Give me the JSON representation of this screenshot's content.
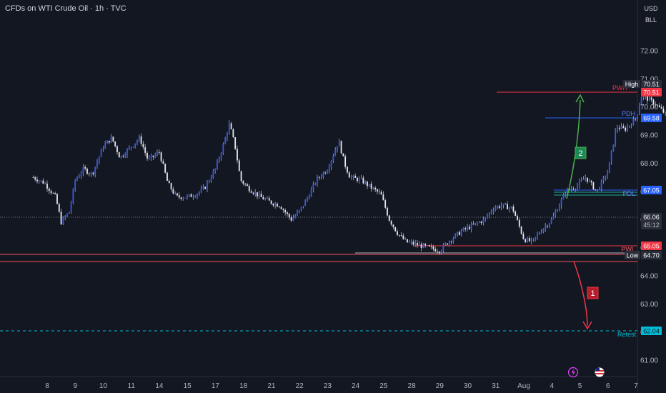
{
  "header": {
    "title": "CFDs on WTI Crude Oil · 1h · TVC",
    "currency": "USD",
    "unit": "BLL"
  },
  "price_axis": {
    "ticks": [
      "72.00",
      "71.00",
      "70.00",
      "69.00",
      "68.00",
      "67.00",
      "66.00",
      "65.00",
      "64.00",
      "63.00",
      "62.00",
      "61.00"
    ]
  },
  "time_axis": {
    "ticks": [
      "8",
      "9",
      "10",
      "11",
      "14",
      "15",
      "17",
      "18",
      "21",
      "22",
      "23",
      "24",
      "25",
      "28",
      "29",
      "30",
      "31",
      "Aug",
      "4",
      "5",
      "6",
      "7"
    ]
  },
  "levels": {
    "high": {
      "label": "High",
      "price": "70.51",
      "color": "#2a2e39"
    },
    "pwh": {
      "label": "PWH",
      "price": "70.51",
      "color": "#f23645"
    },
    "pdh": {
      "label": "PDH",
      "price": "69.58",
      "color": "#2962ff"
    },
    "pdl": {
      "label": "PDL",
      "price": "67.05",
      "color": "#2962ff"
    },
    "current": {
      "price": "66.06",
      "countdown": "45:12",
      "color": "#b2b5be"
    },
    "pwl": {
      "label": "PWL",
      "price": "65.05",
      "color": "#f23645"
    },
    "low": {
      "label": "Low",
      "price": "64.70",
      "color": "#2a2e39"
    },
    "retest": {
      "label": "Retest",
      "price": "62.04",
      "color": "#00bcd4"
    }
  },
  "annotations": {
    "scenario_1": {
      "label": "1",
      "color": "#b71c2a"
    },
    "scenario_2": {
      "label": "2",
      "color": "#1b8a52"
    }
  },
  "chart_data": {
    "type": "candlestick",
    "title": "CFDs on WTI Crude Oil · 1h · TVC",
    "x_categories": [
      "8",
      "9",
      "10",
      "11",
      "14",
      "15",
      "17",
      "18",
      "21",
      "22",
      "23",
      "24",
      "25",
      "28",
      "29",
      "30",
      "31",
      "Aug",
      "4",
      "5",
      "6",
      "7"
    ],
    "ylim": [
      60.5,
      73.0
    ],
    "grid": false,
    "close_path": [
      [
        -0.5,
        67.5
      ],
      [
        -0.1,
        67.3
      ],
      [
        0.3,
        66.8
      ],
      [
        0.5,
        65.9
      ],
      [
        0.8,
        66.3
      ],
      [
        1.0,
        67.4
      ],
      [
        1.3,
        67.8
      ],
      [
        1.6,
        67.6
      ],
      [
        2.0,
        68.6
      ],
      [
        2.3,
        68.9
      ],
      [
        2.6,
        68.2
      ],
      [
        3.0,
        68.6
      ],
      [
        3.3,
        68.9
      ],
      [
        3.6,
        68.1
      ],
      [
        4.0,
        68.4
      ],
      [
        4.3,
        67.3
      ],
      [
        4.6,
        66.8
      ],
      [
        5.0,
        66.8
      ],
      [
        5.3,
        66.9
      ],
      [
        5.6,
        67.1
      ],
      [
        6.0,
        67.8
      ],
      [
        6.3,
        68.7
      ],
      [
        6.5,
        69.4
      ],
      [
        6.7,
        68.6
      ],
      [
        6.9,
        67.4
      ],
      [
        7.2,
        67.1
      ],
      [
        7.6,
        66.8
      ],
      [
        8.0,
        66.6
      ],
      [
        8.3,
        66.5
      ],
      [
        8.7,
        66.0
      ],
      [
        9.0,
        66.3
      ],
      [
        9.3,
        66.8
      ],
      [
        9.6,
        67.4
      ],
      [
        10.0,
        67.8
      ],
      [
        10.4,
        68.8
      ],
      [
        10.6,
        68.0
      ],
      [
        10.8,
        67.5
      ],
      [
        11.2,
        67.4
      ],
      [
        11.6,
        67.1
      ],
      [
        11.9,
        66.9
      ],
      [
        12.2,
        66.0
      ],
      [
        12.5,
        65.5
      ],
      [
        12.8,
        65.2
      ],
      [
        13.2,
        65.1
      ],
      [
        13.6,
        65.0
      ],
      [
        14.0,
        64.9
      ],
      [
        14.4,
        65.3
      ],
      [
        14.8,
        65.6
      ],
      [
        15.2,
        65.8
      ],
      [
        15.6,
        66.0
      ],
      [
        15.9,
        66.4
      ],
      [
        16.2,
        66.5
      ],
      [
        16.6,
        66.4
      ],
      [
        17.0,
        65.3
      ],
      [
        17.3,
        65.2
      ],
      [
        17.6,
        65.6
      ],
      [
        18.0,
        66.0
      ],
      [
        18.5,
        67.0
      ],
      [
        18.9,
        67.2
      ],
      [
        19.2,
        67.5
      ],
      [
        19.6,
        67.0
      ],
      [
        20.0,
        67.7
      ],
      [
        20.3,
        69.3
      ],
      [
        20.6,
        69.2
      ],
      [
        21.0,
        69.6
      ],
      [
        21.2,
        70.4
      ],
      [
        21.4,
        70.3
      ],
      [
        21.7,
        70.1
      ],
      [
        22.0,
        69.8
      ],
      [
        22.3,
        69.5
      ],
      [
        22.6,
        69.6
      ],
      [
        22.9,
        69.3
      ],
      [
        23.2,
        69.3
      ],
      [
        23.4,
        69.5
      ],
      [
        23.6,
        68.5
      ],
      [
        23.8,
        67.2
      ],
      [
        24.0,
        67.0
      ],
      [
        24.3,
        67.2
      ],
      [
        24.6,
        66.9
      ],
      [
        24.9,
        65.9
      ],
      [
        25.1,
        65.7
      ],
      [
        25.3,
        65.8
      ],
      [
        25.4,
        66.0
      ]
    ],
    "key_levels": [
      {
        "name": "High",
        "value": 70.51
      },
      {
        "name": "PWH",
        "value": 70.51
      },
      {
        "name": "PDH",
        "value": 69.58
      },
      {
        "name": "PDL",
        "value": 67.05
      },
      {
        "name": "Current",
        "value": 66.06
      },
      {
        "name": "PWL",
        "value": 65.05
      },
      {
        "name": "Low",
        "value": 64.7
      },
      {
        "name": "Retest",
        "value": 62.04
      }
    ]
  }
}
